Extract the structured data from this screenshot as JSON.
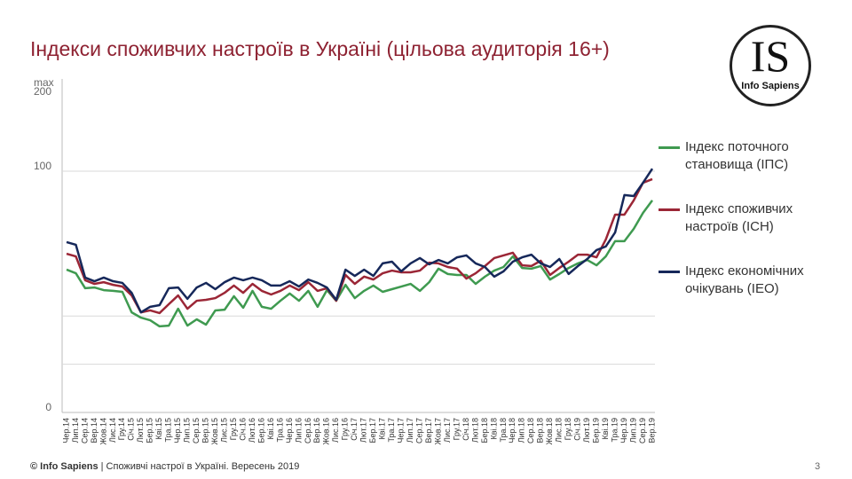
{
  "chart_data": {
    "type": "line",
    "title": "Індекси споживчих настроїв в Україні (цільова аудиторія 16+)",
    "categories": [
      "Чер.14",
      "Лип.14",
      "Сер.14",
      "Вер.14",
      "Жов.14",
      "Лис.14",
      "Гру.14",
      "Січ.15",
      "Лют.15",
      "Бер.15",
      "Кві.15",
      "Тра.15",
      "Чер.15",
      "Лип.15",
      "Сер.15",
      "Вер.15",
      "Жов.15",
      "Лис.15",
      "Гру.15",
      "Січ.16",
      "Лют.16",
      "Бер.16",
      "Кві.16",
      "Тра.16",
      "Чер.16",
      "Лип.16",
      "Сер.16",
      "Вер.16",
      "Жов.16",
      "Лис.16",
      "Гру.16",
      "Січ.17",
      "Лют.17",
      "Бер.17",
      "Кві.17",
      "Тра.17",
      "Чер.17",
      "Лип.17",
      "Сер.17",
      "Вер.17",
      "Жов.17",
      "Лис.17",
      "Гру.17",
      "Січ.18",
      "Лют.18",
      "Бер.18",
      "Кві.18",
      "Тра.18",
      "Чер.18",
      "Лип.18",
      "Сер.18",
      "Вер.18",
      "Жов.18",
      "Лис.18",
      "Гру.18",
      "Січ.19",
      "Лют.19",
      "Бер.19",
      "Кві.19",
      "Тра.19",
      "Чер.19",
      "Лип.19",
      "Сер.19",
      "Вер.19"
    ],
    "series": [
      {
        "name": "Індекс поточного становища (ІПС)",
        "color": "#3f9a50",
        "values": [
          59.2,
          57.7,
          51.5,
          51.8,
          50.7,
          50.4,
          50.0,
          41.5,
          39.3,
          38.2,
          35.7,
          36.0,
          43.0,
          36.0,
          38.6,
          36.4,
          42.3,
          42.6,
          48.2,
          43.4,
          50.4,
          43.8,
          43.0,
          46.3,
          49.3,
          46.3,
          50.4,
          43.8,
          50.7,
          46.3,
          52.9,
          47.4,
          50.4,
          52.6,
          50.0,
          51.1,
          52.2,
          53.3,
          50.4,
          54.0,
          59.6,
          57.4,
          57.0,
          57.0,
          53.3,
          56.3,
          58.8,
          60.3,
          64.7,
          59.9,
          59.6,
          60.7,
          55.1,
          57.4,
          59.9,
          61.8,
          63.2,
          61.0,
          64.7,
          71.0,
          71.0,
          76.1,
          82.7,
          87.9
        ]
      },
      {
        "name": "Індекс споживчих настроїв (ІСН)",
        "color": "#9b2636",
        "values": [
          65.8,
          64.7,
          54.8,
          53.3,
          54.0,
          52.9,
          52.2,
          48.5,
          41.5,
          42.3,
          41.2,
          44.9,
          48.5,
          43.0,
          46.3,
          46.7,
          47.4,
          49.6,
          52.6,
          49.6,
          53.3,
          50.4,
          48.9,
          50.4,
          52.6,
          50.7,
          54.0,
          50.4,
          51.5,
          46.3,
          57.0,
          53.3,
          56.3,
          55.1,
          57.7,
          58.8,
          58.1,
          58.1,
          58.8,
          62.1,
          61.8,
          60.3,
          59.6,
          55.5,
          57.7,
          60.7,
          64.0,
          65.1,
          66.2,
          61.0,
          60.7,
          62.9,
          57.0,
          59.9,
          62.5,
          65.4,
          65.4,
          64.3,
          71.7,
          82.0,
          82.0,
          87.9,
          95.2,
          96.7
        ]
      },
      {
        "name": "Індекс економічних очікувань (ІЕО)",
        "color": "#16285a",
        "values": [
          70.6,
          69.5,
          55.9,
          54.4,
          55.9,
          54.4,
          53.7,
          49.6,
          41.5,
          43.8,
          44.5,
          51.5,
          51.8,
          47.1,
          51.8,
          53.7,
          51.1,
          54.0,
          55.9,
          54.8,
          55.9,
          54.8,
          52.6,
          52.6,
          54.4,
          52.2,
          55.1,
          53.7,
          51.8,
          46.7,
          59.2,
          56.6,
          59.2,
          56.6,
          61.8,
          62.5,
          58.5,
          61.8,
          64.0,
          61.4,
          63.2,
          61.8,
          64.3,
          65.1,
          61.8,
          60.3,
          56.3,
          58.5,
          62.5,
          64.3,
          65.4,
          61.8,
          60.3,
          63.6,
          57.4,
          60.7,
          63.6,
          67.3,
          68.8,
          74.6,
          90.1,
          89.7,
          95.2,
          103.3
        ]
      }
    ],
    "ylim": [
      0,
      200
    ],
    "y_break": 100,
    "yticks": [
      0,
      100,
      200
    ],
    "y_max_label": "max",
    "grid_lines": [
      20,
      40,
      100
    ],
    "legend": "right"
  },
  "logo": {
    "mark": "IS",
    "name": "Info Sapiens"
  },
  "footer": {
    "brand": "© Info Sapiens",
    "text": "| Споживчі настрої в Україні. Вересень 2019",
    "page": "3"
  }
}
